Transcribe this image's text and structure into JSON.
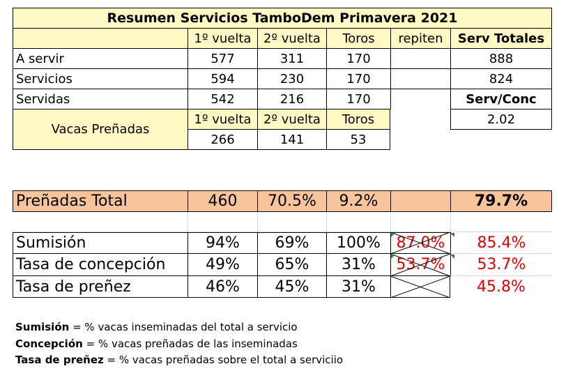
{
  "title": "Resumen Servicios TamboDem Primavera 2021",
  "top_headers": [
    "1º vuelta",
    "2º vuelta",
    "Toros",
    "repiten",
    "Serv Totales"
  ],
  "top_rows": [
    {
      "label": "A servir",
      "v1": "577",
      "v2": "311",
      "toros": "170",
      "total": "888"
    },
    {
      "label": "Servicios",
      "v1": "594",
      "v2": "230",
      "toros": "170",
      "total": "824"
    },
    {
      "label": "Servidas",
      "v1": "542",
      "v2": "216",
      "toros": "170",
      "total_label": "Serv/Conc"
    }
  ],
  "preg": {
    "label": "Vacas Preñadas",
    "headers": [
      "1º vuelta",
      "2º vuelta",
      "Toros"
    ],
    "values": [
      "266",
      "141",
      "53"
    ],
    "serv_conc": "2.02"
  },
  "total_row": {
    "label": "Preñadas Total",
    "v1": "460",
    "v2": "70.5%",
    "toros": "9.2%",
    "total": "79.7%"
  },
  "rates": [
    {
      "label": "Sumisión",
      "v1": "94%",
      "v2": "69%",
      "toros": "100%",
      "repiten": "87.0%",
      "total": "85.4%"
    },
    {
      "label": "Tasa de concepción",
      "v1": "49%",
      "v2": "65%",
      "toros": "31%",
      "repiten": "53.7%",
      "total": "53.7%"
    },
    {
      "label": "Tasa de preñez",
      "v1": "46%",
      "v2": "45%",
      "toros": "31%",
      "repiten": "",
      "total": "45.8%"
    }
  ],
  "legend": [
    {
      "term": "Sumisión",
      "text": " = % vacas inseminadas del total a servicio"
    },
    {
      "term": "Concepción",
      "text": " = % vacas preñadas de las inseminadas"
    },
    {
      "term": "Tasa de preñez",
      "text": " = % vacas preñadas sobre el total a serviciio"
    }
  ],
  "colors": {
    "header_fill": "#fff9c4",
    "total_fill": "#f8c49c",
    "rate_red": "#e00000"
  }
}
